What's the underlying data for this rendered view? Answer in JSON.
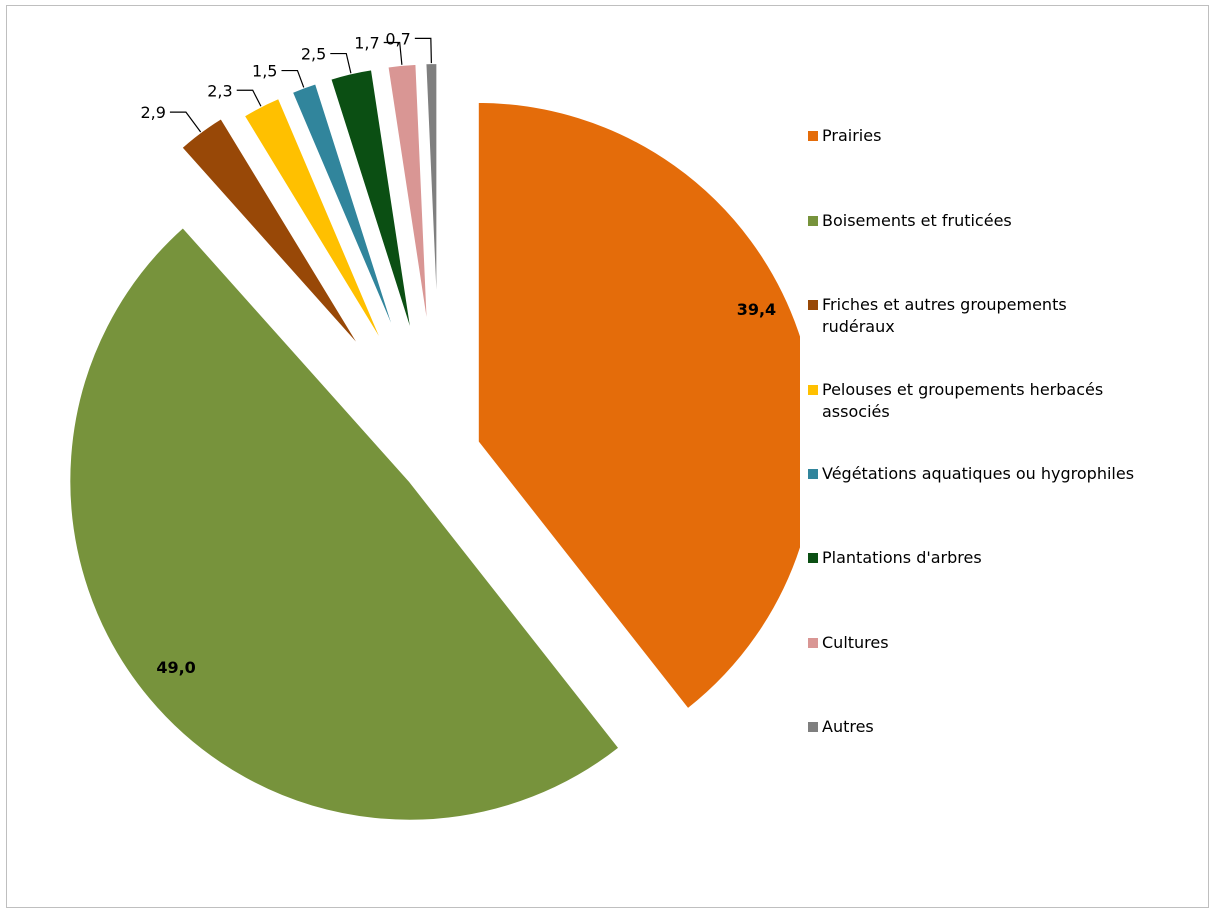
{
  "chart_data": {
    "type": "pie",
    "title": "",
    "legend_position": "right",
    "slices": [
      {
        "label": "Prairies",
        "value": 39.4,
        "display": "39,4",
        "color": "#E46C0A"
      },
      {
        "label": "Boisements et fruticées",
        "value": 49.0,
        "display": "49,0",
        "color": "#77933C"
      },
      {
        "label": "Friches et autres groupements rudéraux",
        "value": 2.9,
        "display": "2,9",
        "color": "#984807"
      },
      {
        "label": "Pelouses et groupements herbacés associés",
        "value": 2.3,
        "display": "2,3",
        "color": "#FFC000"
      },
      {
        "label": "Végétations aquatiques ou hygrophiles",
        "value": 1.5,
        "display": "1,5",
        "color": "#31859C"
      },
      {
        "label": "Plantations d'arbres",
        "value": 2.5,
        "display": "2,5",
        "color": "#0B4F13"
      },
      {
        "label": "Cultures",
        "value": 1.7,
        "display": "1,7",
        "color": "#D99694"
      },
      {
        "label": "Autres",
        "value": 0.7,
        "display": "0,7",
        "color": "#7F7F7F"
      }
    ]
  }
}
